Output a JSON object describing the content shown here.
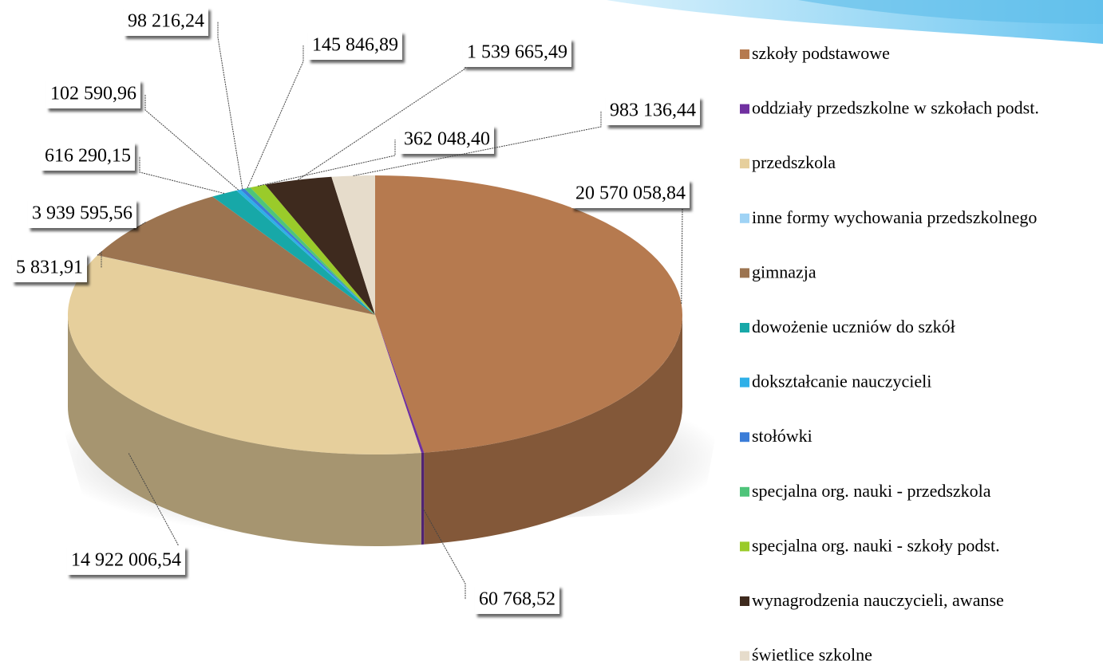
{
  "chart_data": {
    "type": "pie3d",
    "categories": [
      "szkoły podstawowe",
      "oddziały przedszkolne w szkołach podst.",
      "przedszkola",
      "inne formy wychowania przedszkolnego",
      "gimnazja",
      "dowożenie uczniów do szkół",
      "dokształcanie nauczycieli",
      "stołówki",
      "specjalna org. nauki - przedszkola",
      "specjalna org. nauki - szkoły podst.",
      "wynagrodzenia nauczycieli, awanse",
      "świetlice szkolne"
    ],
    "values": [
      20570058.84,
      60768.52,
      14922006.54,
      5831.91,
      3939595.56,
      616290.15,
      102590.96,
      98216.24,
      145846.89,
      362048.4,
      1539665.49,
      983136.44
    ],
    "value_labels": [
      "20 570 058,84",
      "60 768,52",
      "14 922 006,54",
      "5 831,91",
      "3 939 595,56",
      "616 290,15",
      "102 590,96",
      "98 216,24",
      "145 846,89",
      "362 048,40",
      "1 539 665,49",
      "983 136,44"
    ],
    "colors": [
      "#b67a4f",
      "#7030a0",
      "#e6cf9c",
      "#9fd3f5",
      "#9c7450",
      "#17a8a8",
      "#2fb0e8",
      "#3b7dd8",
      "#4ec47a",
      "#9acb2a",
      "#3e2a1e",
      "#e6dccb"
    ]
  }
}
